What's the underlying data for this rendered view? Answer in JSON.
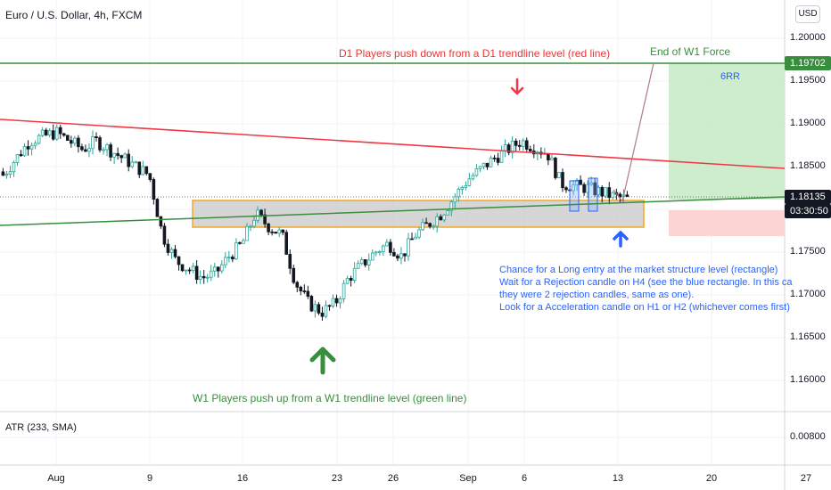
{
  "chart_header": {
    "symbol_title": "Euro / U.S. Dollar, 4h, FXCM",
    "currency_button": "USD"
  },
  "indicator": {
    "label": "ATR (233, SMA)",
    "value_tick": "0.00800"
  },
  "price_axis": {
    "ticks": [
      "1.20000",
      "1.19500",
      "1.19000",
      "1.18500",
      "1.17500",
      "1.17000",
      "1.16500",
      "1.16000"
    ],
    "level_tag": "1.19702",
    "current_price_tag": "1.18135",
    "countdown_tag": "03:30:50"
  },
  "time_axis": {
    "ticks": [
      "Aug",
      "9",
      "16",
      "23",
      "26",
      "Sep",
      "6",
      "13",
      "20",
      "27"
    ]
  },
  "annotations": {
    "d1_note": "D1 Players push down from a D1 trendline level (red line)",
    "w1_force_note": "End of W1 Force",
    "rr_label": "6RR",
    "w1_push_note": "W1 Players push up from a W1 trendline level (green line)",
    "entry_notes": [
      "Chance for a Long entry at the market structure level (rectangle)",
      "Wait for a Rejection candle on H4 (see the blue rectangle. In this ca",
      "they were 2 rejection candles, same as one).",
      "Look for a Acceleration candle on H1 or H2 (whichever comes first)"
    ]
  },
  "colors": {
    "bull_candle": "#26a69a",
    "bear_candle": "#131722",
    "d1_trendline": "#f23645",
    "w1_trendline": "#388e3c",
    "structure_zone_border": "#f5a623",
    "structure_zone_fill": "#c8c8c8",
    "target_zone": "#c8ebc8",
    "stop_zone": "#fcd4d4",
    "price_tag": "#131722",
    "level_tag": "#388e3c",
    "annotation_blue": "#2962ff",
    "annotation_red": "#e53935"
  },
  "chart_data": {
    "type": "candlestick",
    "symbol": "Euro / U.S. Dollar",
    "timeframe": "4h",
    "source": "FXCM",
    "y_axis_range": [
      1.156,
      1.204
    ],
    "horizontal_levels": [
      1.19702,
      1.18135
    ],
    "structure_zone": {
      "top": 1.1812,
      "bottom": 1.1782
    },
    "trendlines": [
      {
        "name": "red line",
        "points": [
          [
            "Jul 27",
            1.192
          ],
          [
            "Sep 25",
            1.185
          ]
        ]
      },
      {
        "name": "green line",
        "points": [
          [
            "Jul 27",
            1.178
          ],
          [
            "Sep 25",
            1.1813
          ]
        ]
      }
    ],
    "arrows": [
      "down @ Sep 5",
      "up @ Aug 21",
      "up @ Sep 13"
    ],
    "close_path": [
      [
        "Jul 28",
        1.184
      ],
      [
        "Jul 30",
        1.188
      ],
      [
        "Aug 1",
        1.189
      ],
      [
        "Aug 3",
        1.187
      ],
      [
        "Aug 4",
        1.188
      ],
      [
        "Aug 6",
        1.186
      ],
      [
        "Aug 8",
        1.184
      ],
      [
        "Aug 9",
        1.177
      ],
      [
        "Aug 10",
        1.174
      ],
      [
        "Aug 12",
        1.172
      ],
      [
        "Aug 13",
        1.1725
      ],
      [
        "Aug 14",
        1.1745
      ],
      [
        "Aug 15",
        1.176
      ],
      [
        "Aug 16",
        1.1795
      ],
      [
        "Aug 17",
        1.178
      ],
      [
        "Aug 18",
        1.177
      ],
      [
        "Aug 19",
        1.1715
      ],
      [
        "Aug 20",
        1.169
      ],
      [
        "Aug 21",
        1.168
      ],
      [
        "Aug 22",
        1.169
      ],
      [
        "Aug 23",
        1.172
      ],
      [
        "Aug 25",
        1.175
      ],
      [
        "Aug 26",
        1.176
      ],
      [
        "Aug 27",
        1.1745
      ],
      [
        "Aug 28",
        1.177
      ],
      [
        "Aug 30",
        1.1795
      ],
      [
        "Aug 31",
        1.1815
      ],
      [
        "Sep 1",
        1.1835
      ],
      [
        "Sep 3",
        1.186
      ],
      [
        "Sep 5",
        1.188
      ],
      [
        "Sep 7",
        1.1865
      ],
      [
        "Sep 8",
        1.183
      ],
      [
        "Sep 10",
        1.1825
      ],
      [
        "Sep 12",
        1.1815
      ],
      [
        "Sep 13",
        1.1812
      ]
    ]
  }
}
